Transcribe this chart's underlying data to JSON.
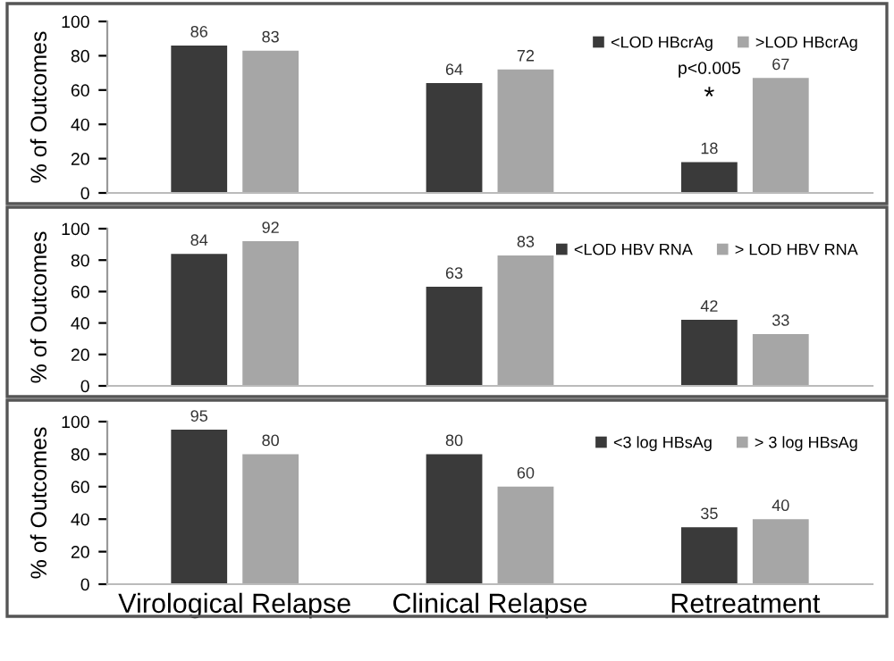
{
  "chart_data": [
    {
      "type": "bar",
      "categories": [
        null,
        null,
        null
      ],
      "ylabel": "% of Outcomes",
      "ylim": [
        0,
        100
      ],
      "yticks": [
        0,
        20,
        40,
        60,
        80,
        100
      ],
      "legend": "top right",
      "data_labels": true,
      "series": [
        {
          "name": "<LOD HBcrAg",
          "color": "#3a3a3a",
          "values": [
            86,
            64,
            18
          ]
        },
        {
          "name": ">LOD HBcrAg",
          "color": "#a6a6a6",
          "values": [
            83,
            72,
            67
          ]
        }
      ],
      "annotations": [
        "p<0.005",
        "*"
      ]
    },
    {
      "type": "bar",
      "categories": [
        null,
        null,
        null
      ],
      "ylabel": "% of Outcomes",
      "ylim": [
        0,
        100
      ],
      "yticks": [
        0,
        20,
        40,
        60,
        80,
        100
      ],
      "legend": "top right",
      "data_labels": true,
      "series": [
        {
          "name": "<LOD HBV RNA",
          "color": "#3a3a3a",
          "values": [
            84,
            63,
            42
          ]
        },
        {
          "name": "> LOD HBV RNA",
          "color": "#a6a6a6",
          "values": [
            92,
            83,
            33
          ]
        }
      ]
    },
    {
      "type": "bar",
      "categories": [
        "Virological Relapse",
        "Clinical Relapse",
        "Retreatment"
      ],
      "ylabel": "% of Outcomes",
      "ylim": [
        0,
        100
      ],
      "yticks": [
        0,
        20,
        40,
        60,
        80,
        100
      ],
      "legend": "top right",
      "data_labels": true,
      "series": [
        {
          "name": "<3 log HBsAg",
          "color": "#3a3a3a",
          "values": [
            95,
            80,
            35
          ]
        },
        {
          "name": "> 3 log HBsAg",
          "color": "#a6a6a6",
          "values": [
            80,
            60,
            40
          ]
        }
      ]
    }
  ]
}
